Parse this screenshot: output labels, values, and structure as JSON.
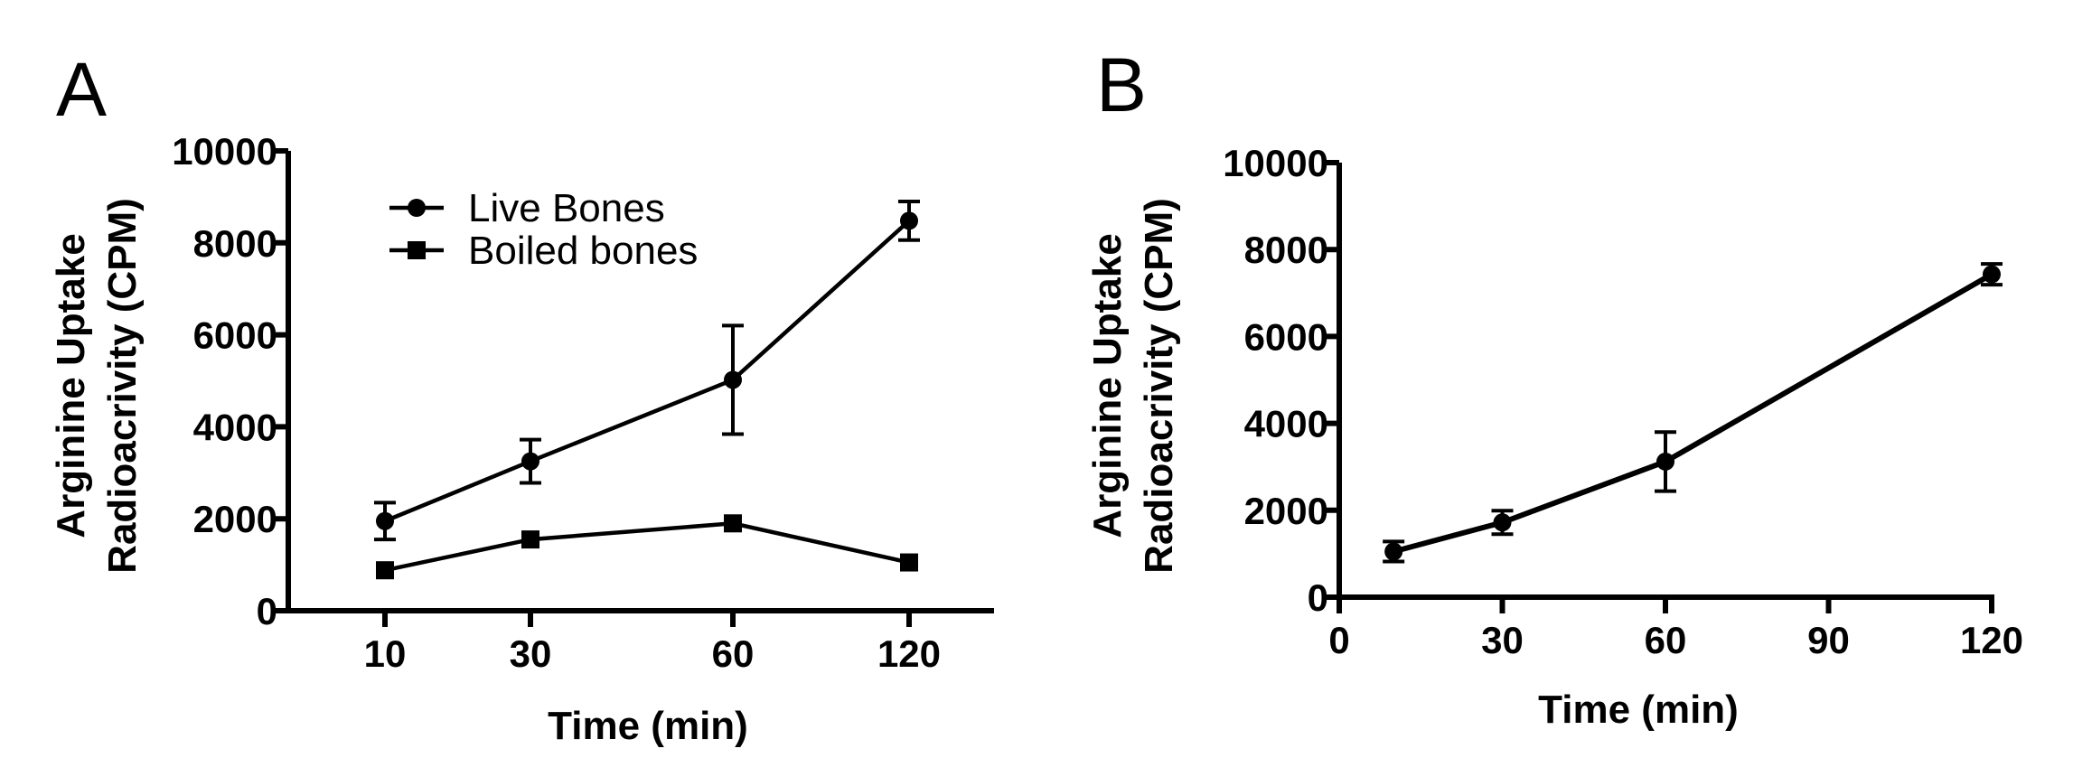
{
  "chart_data": [
    {
      "panel": "A",
      "type": "line",
      "xlabel": "Time (min)",
      "ylabel_line1": "Arginine Uptake",
      "ylabel_line2": "Radioacrivity (CPM)",
      "ylim": [
        0,
        10000
      ],
      "yticks": [
        "0",
        "2000",
        "4000",
        "6000",
        "8000",
        "10000"
      ],
      "ytick_values": [
        0,
        2000,
        4000,
        6000,
        8000,
        10000
      ],
      "categories": [
        "10",
        "30",
        "60",
        "120"
      ],
      "legend_position": "top-left",
      "series": [
        {
          "name": "Live Bones",
          "marker": "circle",
          "values": [
            1950,
            3250,
            5020,
            8480
          ],
          "errors": [
            400,
            470,
            1180,
            420
          ]
        },
        {
          "name": "Boiled bones",
          "marker": "square",
          "values": [
            880,
            1550,
            1900,
            1050
          ],
          "errors": [
            0,
            0,
            0,
            0
          ]
        }
      ]
    },
    {
      "panel": "B",
      "type": "line",
      "xlabel": "Time (min)",
      "ylabel_line1": "Arginine Uptake",
      "ylabel_line2": "Radioacrivity (CPM)",
      "ylim": [
        0,
        10000
      ],
      "xlim": [
        0,
        120
      ],
      "yticks": [
        "0",
        "2000",
        "4000",
        "6000",
        "8000",
        "10000"
      ],
      "ytick_values": [
        0,
        2000,
        4000,
        6000,
        8000,
        10000
      ],
      "xticks": [
        "0",
        "30",
        "60",
        "90",
        "120"
      ],
      "xtick_values": [
        0,
        30,
        60,
        90,
        120
      ],
      "series": [
        {
          "name": "",
          "marker": "circle",
          "x": [
            10,
            30,
            60,
            120
          ],
          "values": [
            1050,
            1720,
            3120,
            7430
          ],
          "errors": [
            230,
            270,
            680,
            240
          ]
        }
      ]
    }
  ]
}
